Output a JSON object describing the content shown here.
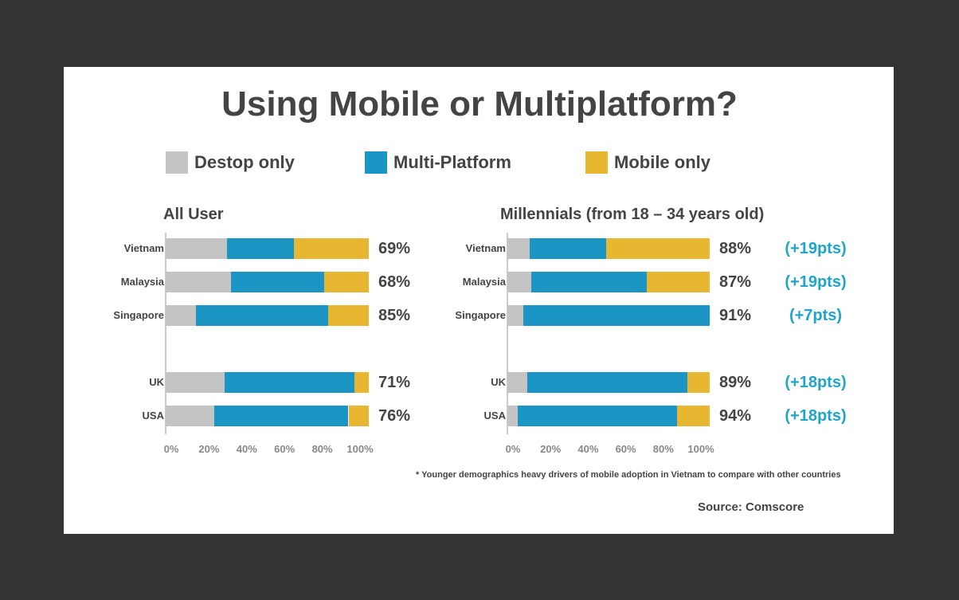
{
  "colors": {
    "desktop": "#c4c4c4",
    "multi": "#1b95c4",
    "mobile": "#e8b732"
  },
  "chart_data": [
    {
      "type": "bar",
      "stacked": true,
      "orientation": "horizontal",
      "title": "All User",
      "categories": [
        "Vietnam",
        "Malaysia",
        "Singapore",
        "UK",
        "USA"
      ],
      "series": [
        {
          "name": "Destop only",
          "values": [
            30,
            32,
            15,
            29,
            24
          ]
        },
        {
          "name": "Multi-Platform",
          "values": [
            33,
            46,
            65,
            64,
            66
          ]
        },
        {
          "name": "Mobile only",
          "values": [
            37,
            22,
            20,
            7,
            10
          ]
        }
      ],
      "labels": [
        "69%",
        "68%",
        "85%",
        "71%",
        "76%"
      ],
      "ticks": [
        "0%",
        "20%",
        "40%",
        "60%",
        "80%",
        "100%"
      ],
      "xlim": [
        0,
        100
      ]
    },
    {
      "type": "bar",
      "stacked": true,
      "orientation": "horizontal",
      "title": "Millennials (from 18 – 34 years old)",
      "categories": [
        "Vietnam",
        "Malaysia",
        "Singapore",
        "UK",
        "USA"
      ],
      "series": [
        {
          "name": "Destop only",
          "values": [
            11,
            12,
            8,
            10,
            5
          ]
        },
        {
          "name": "Multi-Platform",
          "values": [
            38,
            57,
            92,
            79,
            79
          ]
        },
        {
          "name": "Mobile only",
          "values": [
            51,
            31,
            0,
            11,
            16
          ]
        }
      ],
      "labels": [
        "88%",
        "87%",
        "91%",
        "89%",
        "94%"
      ],
      "deltas": [
        "(+19pts)",
        "(+19pts)",
        "(+7pts)",
        "(+18pts)",
        "(+18pts)"
      ],
      "ticks": [
        "0%",
        "20%",
        "40%",
        "60%",
        "80%",
        "100%"
      ],
      "xlim": [
        0,
        100
      ]
    }
  ],
  "title": "Using Mobile or Multiplatform?",
  "legend": [
    "Destop only",
    "Multi-Platform",
    "Mobile only"
  ],
  "footnote": "* Younger demographics heavy drivers of mobile adoption in Vietnam to compare with other countries",
  "source": "Source: Comscore"
}
